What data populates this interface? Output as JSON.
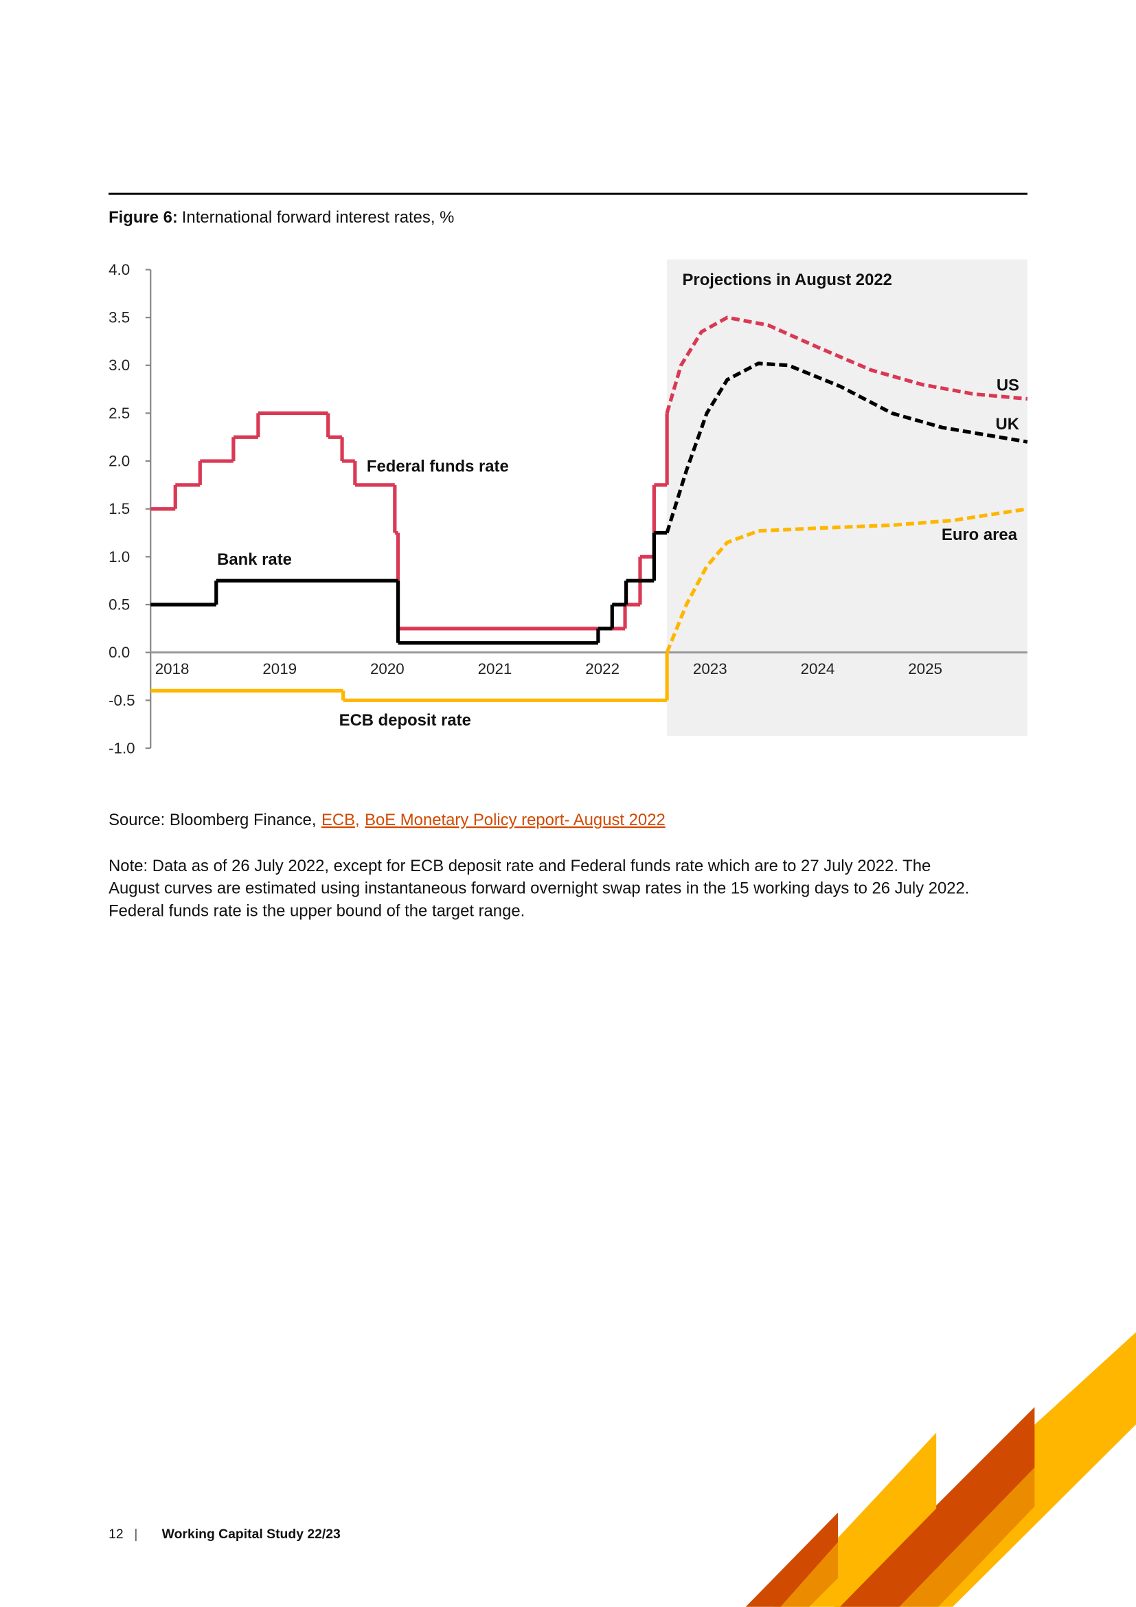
{
  "figure": {
    "label": "Figure 6:",
    "title": "International forward interest rates, %"
  },
  "chart_data": {
    "type": "line",
    "ylim": [
      -1,
      4
    ],
    "yticks": [
      {
        "value": -1,
        "label": "-1.0"
      },
      -0.5,
      {
        "value": 0,
        "label": "0.0"
      },
      0.5,
      {
        "value": 1,
        "label": "1.0"
      },
      1.5,
      {
        "value": 2,
        "label": "2.0"
      },
      2.5,
      {
        "value": 3,
        "label": "3.0"
      },
      3.5,
      {
        "value": 4,
        "label": "4.0"
      }
    ],
    "xlim": [
      2017.8,
      2025.95
    ],
    "xticks": [
      2018,
      2019,
      2020,
      2021,
      2022,
      2023,
      2024,
      2025
    ],
    "zero_line": true,
    "annotations": [
      "Projections in August 2022"
    ],
    "series": [
      {
        "name": "Federal funds rate",
        "color": "#d93954",
        "step": true,
        "dashed": false,
        "x": [
          2017.8,
          2018.03,
          2018.26,
          2018.57,
          2018.8,
          2019.45,
          2019.58,
          2019.7,
          2020.07,
          2020.1,
          2022.21,
          2022.35,
          2022.48,
          2022.6
        ],
        "values": [
          1.5,
          1.75,
          2.0,
          2.25,
          2.5,
          2.25,
          2.0,
          1.75,
          1.25,
          0.25,
          0.5,
          1.0,
          1.75,
          2.5
        ]
      },
      {
        "name": "Bank rate",
        "color": "#000000",
        "step": true,
        "dashed": false,
        "x": [
          2017.8,
          2018.41,
          2020.1,
          2021.96,
          2022.09,
          2022.22,
          2022.48,
          2022.6
        ],
        "values": [
          0.5,
          0.75,
          0.1,
          0.25,
          0.5,
          0.75,
          1.25,
          1.25
        ]
      },
      {
        "name": "ECB deposit rate",
        "color": "#ffb600",
        "step": true,
        "dashed": false,
        "x": [
          2017.8,
          2019.59,
          2022.6
        ],
        "values": [
          -0.4,
          -0.5,
          -0.5
        ]
      },
      {
        "name": "US",
        "color": "#d93954",
        "step": false,
        "dashed": true,
        "x": [
          2022.6,
          2022.73,
          2022.92,
          2023.16,
          2023.54,
          2024.02,
          2024.5,
          2024.97,
          2025.45,
          2025.95
        ],
        "values": [
          2.5,
          3.0,
          3.35,
          3.5,
          3.42,
          3.18,
          2.95,
          2.8,
          2.7,
          2.65
        ]
      },
      {
        "name": "UK",
        "color": "#000000",
        "step": false,
        "dashed": true,
        "x": [
          2022.6,
          2022.78,
          2022.97,
          2023.16,
          2023.45,
          2023.73,
          2024.21,
          2024.69,
          2025.16,
          2025.95
        ],
        "values": [
          1.25,
          1.9,
          2.5,
          2.85,
          3.02,
          3.0,
          2.78,
          2.5,
          2.35,
          2.2
        ]
      },
      {
        "name": "Euro area",
        "color": "#ffb600",
        "step": false,
        "dashed": true,
        "x": [
          2022.6,
          2022.78,
          2022.97,
          2023.16,
          2023.45,
          2024.02,
          2024.69,
          2025.26,
          2025.95
        ],
        "values": [
          0.0,
          0.5,
          0.9,
          1.15,
          1.27,
          1.3,
          1.33,
          1.38,
          1.5
        ]
      }
    ]
  },
  "source": {
    "prefix": "Source: Bloomberg Finance,",
    "links": [
      "ECB,",
      "BoE Monetary Policy report- August 2022"
    ]
  },
  "note_lines": [
    "Note: Data as of 26 July 2022, except for ECB deposit rate and Federal funds rate which are to 27 July 2022. The",
    "August curves are estimated using instantaneous forward overnight swap rates in the 15 working days to 26 July 2022.",
    "Federal funds rate is the upper bound of the target range."
  ],
  "footer": {
    "page": "12",
    "separator": "|",
    "title": "Working Capital Study 22/23"
  }
}
